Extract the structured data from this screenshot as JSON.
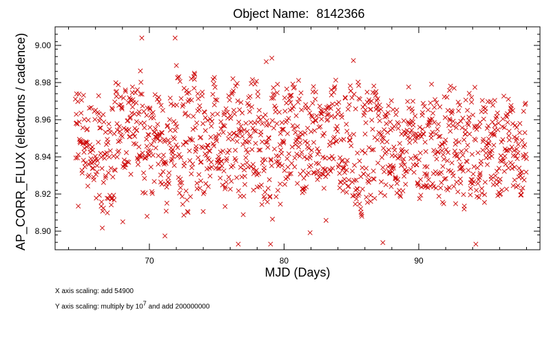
{
  "chart_data": {
    "type": "scatter",
    "title_label": "Object Name:",
    "object_name": "8142366",
    "xlabel": "MJD (Days)",
    "ylabel": "AP_CORR_FLUX (electrons / cadence)",
    "xlim": [
      63,
      99
    ],
    "ylim": [
      8.89,
      9.01
    ],
    "x_ticks": [
      70,
      80,
      90
    ],
    "y_ticks": [
      8.9,
      8.92,
      8.94,
      8.96,
      8.98,
      9.0
    ],
    "x_tick_labels": [
      "70",
      "80",
      "90"
    ],
    "y_tick_labels": [
      "8.90",
      "8.92",
      "8.94",
      "8.96",
      "8.98",
      "9.00"
    ],
    "marker": "x",
    "color": "#cc0000",
    "n_points": 1400,
    "x_range": [
      64.5,
      98.0
    ],
    "segments": [
      {
        "x": [
          64.5,
          66.0
        ],
        "y_center": 8.95,
        "y_spread": 0.022
      },
      {
        "x": [
          66.0,
          67.5
        ],
        "y_center": 8.94,
        "y_spread": 0.028
      },
      {
        "x": [
          67.5,
          69.5
        ],
        "y_center": 8.958,
        "y_spread": 0.024
      },
      {
        "x": [
          69.5,
          72.0
        ],
        "y_center": 8.945,
        "y_spread": 0.026
      },
      {
        "x": [
          72.0,
          74.0
        ],
        "y_center": 8.95,
        "y_spread": 0.032
      },
      {
        "x": [
          74.0,
          76.0
        ],
        "y_center": 8.948,
        "y_spread": 0.026
      },
      {
        "x": [
          76.0,
          78.0
        ],
        "y_center": 8.95,
        "y_spread": 0.03
      },
      {
        "x": [
          78.0,
          80.0
        ],
        "y_center": 8.945,
        "y_spread": 0.03
      },
      {
        "x": [
          80.0,
          82.5
        ],
        "y_center": 8.952,
        "y_spread": 0.026
      },
      {
        "x": [
          82.5,
          85.0
        ],
        "y_center": 8.95,
        "y_spread": 0.026
      },
      {
        "x": [
          85.0,
          87.0
        ],
        "y_center": 8.945,
        "y_spread": 0.034
      },
      {
        "x": [
          87.0,
          89.0
        ],
        "y_center": 8.945,
        "y_spread": 0.024
      },
      {
        "x": [
          89.0,
          91.0
        ],
        "y_center": 8.948,
        "y_spread": 0.024
      },
      {
        "x": [
          91.0,
          93.0
        ],
        "y_center": 8.945,
        "y_spread": 0.03
      },
      {
        "x": [
          93.0,
          95.0
        ],
        "y_center": 8.945,
        "y_spread": 0.028
      },
      {
        "x": [
          95.0,
          98.0
        ],
        "y_center": 8.945,
        "y_spread": 0.022
      }
    ]
  },
  "notes": {
    "x_scaling": "X axis scaling: add 54900",
    "y_scaling_prefix": "Y axis scaling: multiply by 10",
    "y_scaling_exp": "7",
    "y_scaling_suffix": " and add 200000000"
  }
}
